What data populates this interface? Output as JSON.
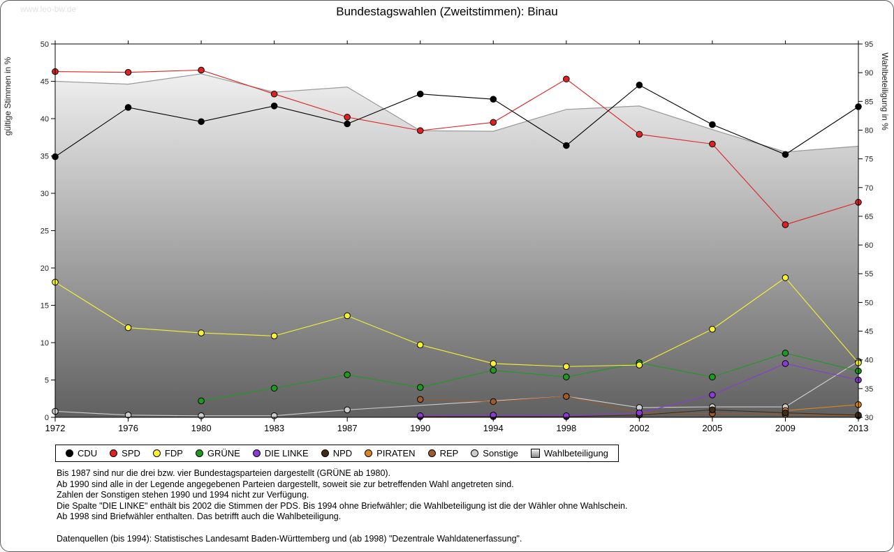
{
  "watermark": "www.leo-bw.de",
  "chart_data": {
    "type": "line",
    "title": "Bundestagswahlen (Zweitstimmen): Binau",
    "categories": [
      "1972",
      "1976",
      "1980",
      "1983",
      "1987",
      "1990",
      "1994",
      "1998",
      "2002",
      "2005",
      "2009",
      "2013"
    ],
    "left_axis": {
      "label": "gültige Stimmen in %",
      "min": 0,
      "max": 50,
      "ticks": [
        0,
        5,
        10,
        15,
        20,
        25,
        30,
        35,
        40,
        45,
        50
      ]
    },
    "right_axis": {
      "label": "Wahlbeteiligung in %",
      "min": 30,
      "max": 95,
      "ticks": [
        30,
        35,
        40,
        45,
        50,
        55,
        60,
        65,
        70,
        75,
        80,
        85,
        90,
        95
      ]
    },
    "series": [
      {
        "name": "CDU",
        "color": "#000000",
        "values": [
          34.9,
          41.5,
          39.6,
          41.7,
          39.3,
          43.3,
          42.6,
          36.4,
          44.5,
          39.2,
          35.2,
          41.6
        ]
      },
      {
        "name": "SPD",
        "color": "#dd2222",
        "values": [
          46.3,
          46.2,
          46.5,
          43.3,
          40.2,
          38.4,
          39.5,
          45.3,
          37.9,
          36.6,
          25.8,
          28.8
        ]
      },
      {
        "name": "FDP",
        "color": "#f8f332",
        "values": [
          18.1,
          12.0,
          11.3,
          10.9,
          13.6,
          9.7,
          7.2,
          6.8,
          7.0,
          11.8,
          18.7,
          7.3
        ]
      },
      {
        "name": "GRÜNE",
        "color": "#1e9a1e",
        "values": [
          null,
          null,
          2.2,
          3.9,
          5.7,
          4.0,
          6.3,
          5.4,
          7.3,
          5.4,
          8.6,
          6.2
        ]
      },
      {
        "name": "DIE LINKE",
        "color": "#8a3bd2",
        "values": [
          null,
          null,
          null,
          null,
          null,
          0.2,
          0.3,
          0.2,
          0.6,
          3.0,
          7.2,
          5.0
        ]
      },
      {
        "name": "NPD",
        "color": "#3f2d16",
        "values": [
          null,
          null,
          null,
          null,
          null,
          0.1,
          0.1,
          0.1,
          0.3,
          1.0,
          0.6,
          0.3
        ]
      },
      {
        "name": "PIRATEN",
        "color": "#dc861f",
        "values": [
          null,
          null,
          null,
          null,
          null,
          null,
          null,
          null,
          null,
          null,
          0.9,
          1.7
        ]
      },
      {
        "name": "REP",
        "color": "#9c5a2d",
        "values": [
          null,
          null,
          null,
          null,
          null,
          2.4,
          2.1,
          2.8,
          0.6,
          0.5,
          0.4,
          0.2
        ]
      },
      {
        "name": "Sonstige",
        "color": "#cecece",
        "values": [
          0.8,
          0.3,
          0.2,
          0.2,
          1.0,
          null,
          null,
          2.8,
          1.3,
          1.4,
          1.4,
          7.5
        ]
      }
    ],
    "turnout": {
      "name": "Wahlbeteiligung",
      "axis": "right",
      "stroke": "#999999",
      "fill_top": "#fcfcfc",
      "fill_bottom": "#606060",
      "values": [
        88.5,
        88.0,
        89.8,
        86.6,
        87.5,
        79.9,
        79.8,
        83.6,
        84.2,
        80.1,
        76.2,
        77.2
      ]
    }
  },
  "notes": {
    "lines": [
      "Bis 1987 sind nur die drei bzw. vier Bundestagsparteien dargestellt (GRÜNE ab 1980).",
      "Ab 1990 sind alle in der Legende angegebenen Parteien dargestellt, soweit sie zur betreffenden Wahl angetreten sind.",
      "Zahlen der Sonstigen stehen 1990 und 1994 nicht zur Verfügung.",
      "Die Spalte \"DIE LINKE\" enthält bis 2002 die Stimmen der PDS. Bis 1994 ohne Briefwähler; die Wahlbeteiligung ist die der Wähler ohne Wahlschein.",
      "Ab 1998 sind Briefwähler enthalten. Das betrifft auch die Wahlbeteiligung."
    ],
    "source": "Datenquellen (bis 1994): Statistisches Landesamt Baden-Württemberg und (ab 1998) \"Dezentrale Wahldatenerfassung\"."
  }
}
